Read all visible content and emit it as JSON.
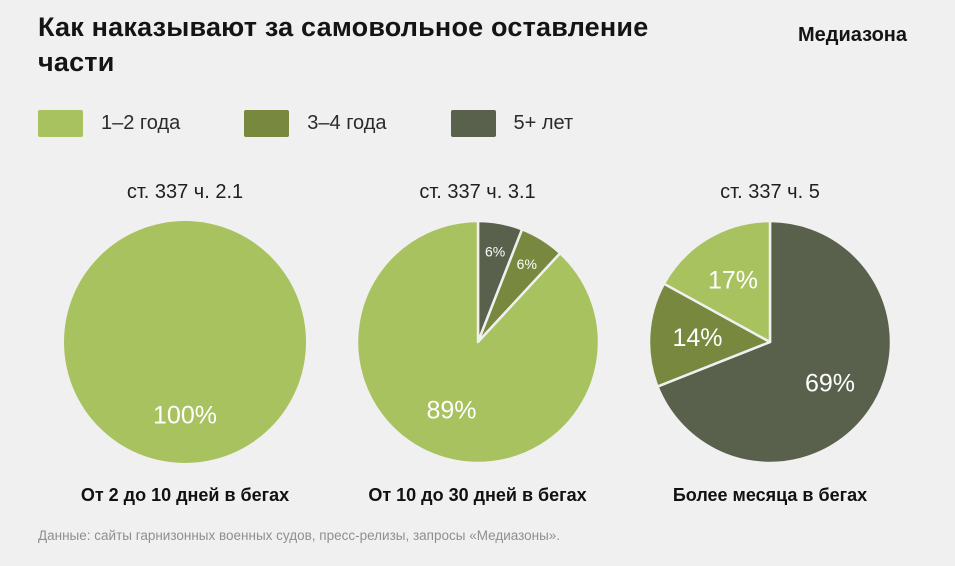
{
  "title": "Как наказывают за самовольное оставление части",
  "brand": "Медиазона",
  "legend": [
    {
      "label": "1–2 года",
      "color": "#a8c25f"
    },
    {
      "label": "3–4 года",
      "color": "#78883e"
    },
    {
      "label": "5+ лет",
      "color": "#59604b"
    }
  ],
  "footer": "Данные: сайты гарнизонных военных судов, пресс-релизы, запросы «Медиазоны».",
  "colors": {
    "background": "#f0f0f0",
    "light_green": "#a8c25f",
    "olive": "#78883e",
    "dark_olive": "#59604b",
    "slice_label_text": "#ffffff"
  },
  "chart_data": [
    {
      "type": "pie",
      "title": "ст. 337 ч. 2.1",
      "caption": "От 2 до 10 дней в бегах",
      "legend_position": "top",
      "slices": [
        {
          "label": "1–2 года",
          "value": 100,
          "text": "100%",
          "color": "#a8c25f"
        }
      ]
    },
    {
      "type": "pie",
      "title": "ст. 337 ч. 3.1",
      "caption": "От 10 до 30 дней в бегах",
      "legend_position": "top",
      "slices": [
        {
          "label": "5+ лет",
          "value": 6,
          "text": "6%",
          "color": "#59604b"
        },
        {
          "label": "3–4 года",
          "value": 6,
          "text": "6%",
          "color": "#78883e"
        },
        {
          "label": "1–2 года",
          "value": 89,
          "text": "89%",
          "color": "#a8c25f"
        }
      ]
    },
    {
      "type": "pie",
      "title": "ст. 337 ч. 5",
      "caption": "Более месяца в бегах",
      "legend_position": "top",
      "slices": [
        {
          "label": "5+ лет",
          "value": 69,
          "text": "69%",
          "color": "#59604b"
        },
        {
          "label": "3–4 года",
          "value": 14,
          "text": "14%",
          "color": "#78883e"
        },
        {
          "label": "1–2 года",
          "value": 17,
          "text": "17%",
          "color": "#a8c25f"
        }
      ]
    }
  ]
}
